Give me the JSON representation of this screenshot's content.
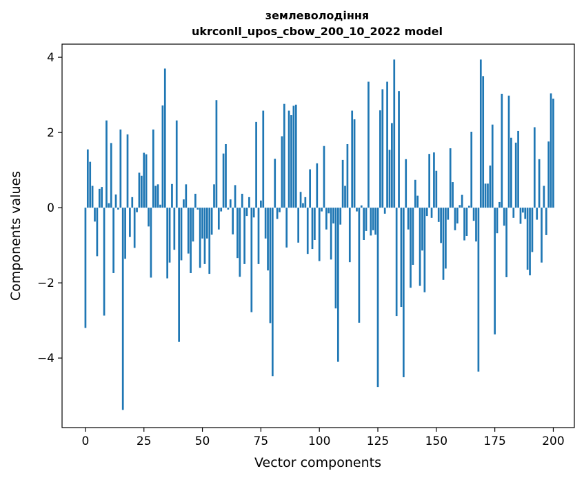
{
  "chart_data": {
    "type": "bar",
    "title": "землеволодіння",
    "subtitle": "ukrconll_upos_cbow_200_10_2022 model",
    "xlabel": "Vector components",
    "ylabel": "Components values",
    "xlim": [
      -10,
      209
    ],
    "ylim": [
      -5.85,
      4.35
    ],
    "xticks": [
      0,
      25,
      50,
      75,
      100,
      125,
      150,
      175,
      200
    ],
    "yticks": [
      -4,
      -2,
      0,
      2,
      4
    ],
    "grid": false,
    "bar_color": "#1f77b4",
    "values": [
      -3.2,
      1.55,
      1.22,
      0.58,
      -0.37,
      -1.29,
      0.5,
      0.55,
      -2.87,
      2.32,
      0.12,
      1.72,
      -1.74,
      0.35,
      -0.05,
      2.08,
      -5.38,
      -1.36,
      1.95,
      -0.78,
      0.28,
      -1.07,
      -0.12,
      0.93,
      0.85,
      1.46,
      1.42,
      -0.5,
      -1.86,
      2.08,
      0.58,
      0.62,
      0.08,
      2.72,
      3.7,
      -1.88,
      -1.46,
      0.63,
      -1.12,
      2.32,
      -3.57,
      -1.4,
      0.22,
      0.62,
      -1.22,
      -1.74,
      -0.9,
      0.37,
      -0.05,
      -1.6,
      -0.82,
      -1.5,
      -0.82,
      -1.76,
      -0.72,
      0.62,
      2.86,
      -0.58,
      -0.1,
      1.44,
      1.69,
      -0.05,
      0.22,
      -0.71,
      0.6,
      -1.34,
      -1.84,
      0.37,
      -1.5,
      -0.22,
      0.28,
      -2.78,
      -0.26,
      2.28,
      -1.5,
      0.19,
      2.58,
      -0.82,
      -1.67,
      -3.07,
      -4.48,
      1.3,
      -0.3,
      -0.12,
      1.9,
      2.76,
      -1.06,
      2.58,
      2.46,
      2.71,
      2.74,
      -0.93,
      0.42,
      0.12,
      0.28,
      -1.23,
      1.02,
      -1.1,
      -0.86,
      1.18,
      -1.42,
      -0.1,
      1.64,
      -0.58,
      -0.15,
      -1.38,
      -0.42,
      -2.68,
      -4.1,
      -0.45,
      1.27,
      0.58,
      1.69,
      -1.45,
      2.58,
      2.35,
      -0.1,
      -3.06,
      0.06,
      -0.86,
      -0.62,
      3.35,
      -0.74,
      -0.6,
      -0.72,
      -4.77,
      2.59,
      3.15,
      -0.16,
      3.35,
      1.54,
      2.25,
      3.94,
      -2.88,
      3.1,
      -2.64,
      -4.51,
      1.29,
      -0.58,
      -2.13,
      -1.52,
      0.74,
      0.32,
      -2.08,
      -1.14,
      -2.25,
      -0.22,
      1.43,
      -0.27,
      1.47,
      0.98,
      -0.38,
      -0.94,
      -1.92,
      -1.62,
      -0.32,
      1.58,
      0.68,
      -0.6,
      -0.42,
      0.07,
      0.34,
      -0.87,
      -0.75,
      0.05,
      2.02,
      -0.35,
      -0.9,
      -4.36,
      3.94,
      3.5,
      0.64,
      0.64,
      1.12,
      2.21,
      -3.37,
      -0.68,
      0.15,
      3.03,
      -0.48,
      -1.85,
      2.98,
      1.86,
      -0.27,
      1.73,
      2.04,
      -0.43,
      -0.13,
      -0.3,
      -1.65,
      -1.8,
      -1.18,
      2.14,
      -0.32,
      1.29,
      -1.46,
      0.58,
      -0.73,
      1.76,
      3.04,
      2.9
    ]
  }
}
